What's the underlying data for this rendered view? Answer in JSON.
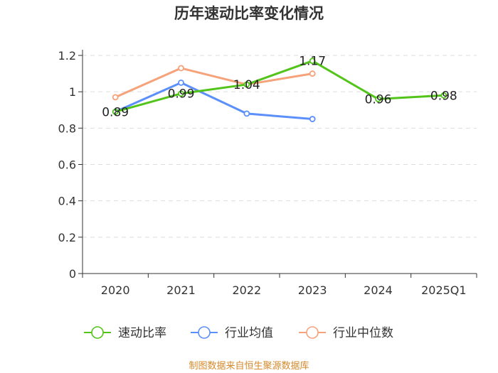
{
  "chart_data": {
    "type": "line",
    "title": "历年速动比率变化情况",
    "categories": [
      "2020",
      "2021",
      "2022",
      "2023",
      "2024",
      "2025Q1"
    ],
    "ylim": [
      0,
      1.2
    ],
    "yticks": [
      "0",
      "0.2",
      "0.4",
      "0.6",
      "0.8",
      "1",
      "1.2"
    ],
    "grid": true,
    "legend_position": "bottom",
    "series": [
      {
        "name": "速动比率",
        "color": "#52c41a",
        "values": [
          0.89,
          0.99,
          1.04,
          1.17,
          0.96,
          0.98
        ],
        "labels": [
          "0.89",
          "0.99",
          "1.04",
          "1.17",
          "0.96",
          "0.98"
        ]
      },
      {
        "name": "行业均值",
        "color": "#5b8ff9",
        "values": [
          0.89,
          1.05,
          0.88,
          0.85,
          null,
          null
        ]
      },
      {
        "name": "行业中位数",
        "color": "#f6a27a",
        "values": [
          0.97,
          1.13,
          1.04,
          1.1,
          null,
          null
        ]
      }
    ],
    "source": "制图数据来自恒生聚源数据库",
    "source_color": "#d48a2c"
  }
}
